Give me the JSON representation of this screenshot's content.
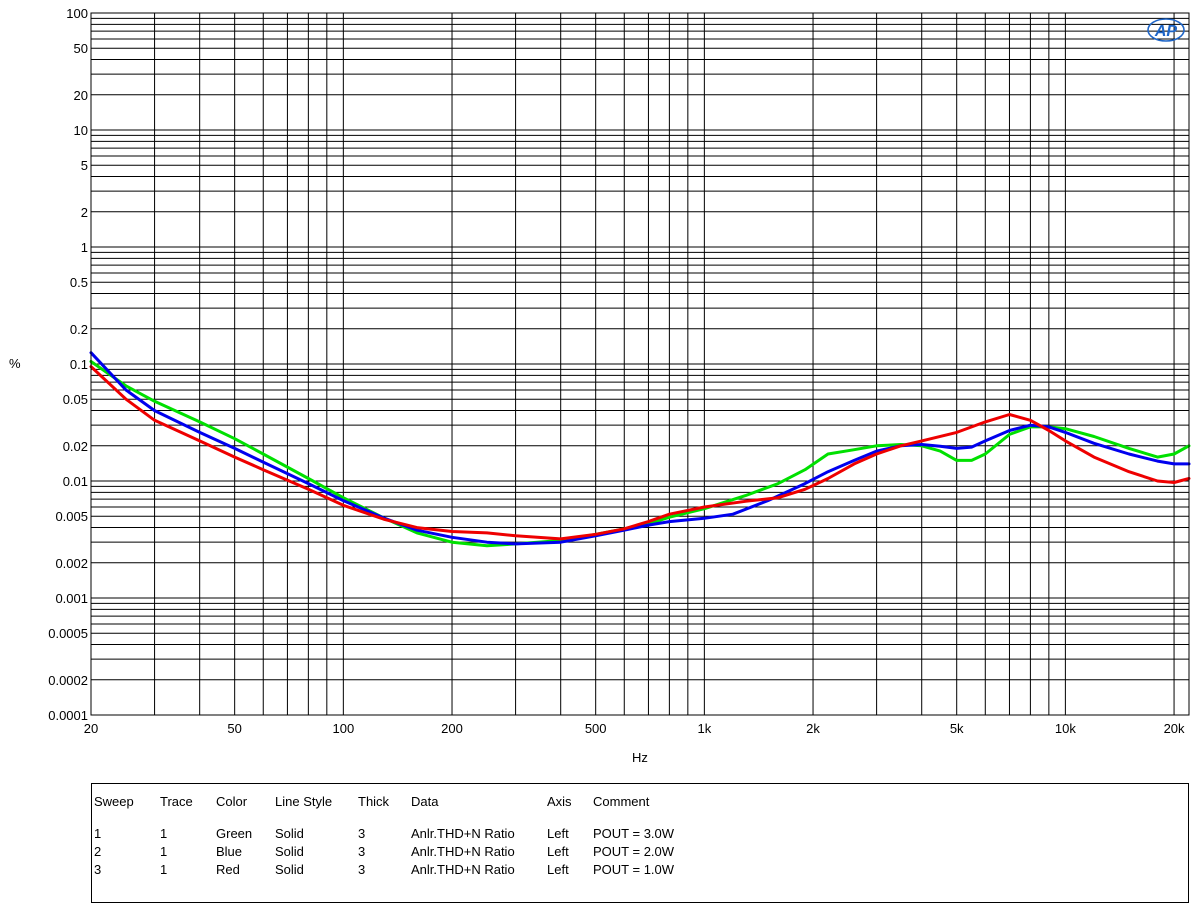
{
  "chart_data": {
    "type": "line",
    "xlabel": "Hz",
    "ylabel": "%",
    "x_scale": "log",
    "y_scale": "log",
    "xlim": [
      20,
      22000
    ],
    "ylim": [
      0.0001,
      100
    ],
    "grid": true,
    "x_ticks": [
      {
        "value": 20,
        "label": "20"
      },
      {
        "value": 50,
        "label": "50"
      },
      {
        "value": 100,
        "label": "100"
      },
      {
        "value": 200,
        "label": "200"
      },
      {
        "value": 500,
        "label": "500"
      },
      {
        "value": 1000,
        "label": "1k"
      },
      {
        "value": 2000,
        "label": "2k"
      },
      {
        "value": 5000,
        "label": "5k"
      },
      {
        "value": 10000,
        "label": "10k"
      },
      {
        "value": 20000,
        "label": "20k"
      }
    ],
    "y_ticks": [
      {
        "value": 100,
        "label": "100"
      },
      {
        "value": 50,
        "label": "50"
      },
      {
        "value": 20,
        "label": "20"
      },
      {
        "value": 10,
        "label": "10"
      },
      {
        "value": 5,
        "label": "5"
      },
      {
        "value": 2,
        "label": "2"
      },
      {
        "value": 1,
        "label": "1"
      },
      {
        "value": 0.5,
        "label": "0.5"
      },
      {
        "value": 0.2,
        "label": "0.2"
      },
      {
        "value": 0.1,
        "label": "0.1"
      },
      {
        "value": 0.05,
        "label": "0.05"
      },
      {
        "value": 0.02,
        "label": "0.02"
      },
      {
        "value": 0.01,
        "label": "0.01"
      },
      {
        "value": 0.005,
        "label": "0.005"
      },
      {
        "value": 0.002,
        "label": "0.002"
      },
      {
        "value": 0.001,
        "label": "0.001"
      },
      {
        "value": 0.0005,
        "label": "0.0005"
      },
      {
        "value": 0.0002,
        "label": "0.0002"
      },
      {
        "value": 0.0001,
        "label": "0.0001"
      }
    ],
    "series": [
      {
        "name": "POUT = 3.0W",
        "color": "#00e000",
        "points": [
          [
            20,
            0.105
          ],
          [
            25,
            0.065
          ],
          [
            30,
            0.048
          ],
          [
            40,
            0.032
          ],
          [
            50,
            0.023
          ],
          [
            60,
            0.017
          ],
          [
            80,
            0.0105
          ],
          [
            100,
            0.0072
          ],
          [
            130,
            0.0048
          ],
          [
            160,
            0.0036
          ],
          [
            200,
            0.003
          ],
          [
            250,
            0.0028
          ],
          [
            300,
            0.0029
          ],
          [
            400,
            0.0031
          ],
          [
            500,
            0.0035
          ],
          [
            600,
            0.0039
          ],
          [
            700,
            0.0043
          ],
          [
            800,
            0.0049
          ],
          [
            1000,
            0.0058
          ],
          [
            1300,
            0.0075
          ],
          [
            1600,
            0.0095
          ],
          [
            1900,
            0.0125
          ],
          [
            2200,
            0.017
          ],
          [
            2600,
            0.0185
          ],
          [
            3000,
            0.02
          ],
          [
            3500,
            0.0205
          ],
          [
            4000,
            0.02
          ],
          [
            4500,
            0.018
          ],
          [
            5000,
            0.015
          ],
          [
            5500,
            0.015
          ],
          [
            6000,
            0.017
          ],
          [
            7000,
            0.025
          ],
          [
            8000,
            0.029
          ],
          [
            9000,
            0.029
          ],
          [
            10000,
            0.028
          ],
          [
            12000,
            0.024
          ],
          [
            15000,
            0.019
          ],
          [
            18000,
            0.016
          ],
          [
            20000,
            0.017
          ],
          [
            22000,
            0.02
          ]
        ]
      },
      {
        "name": "POUT = 2.0W",
        "color": "#0000ee",
        "points": [
          [
            20,
            0.125
          ],
          [
            25,
            0.06
          ],
          [
            30,
            0.04
          ],
          [
            40,
            0.026
          ],
          [
            50,
            0.019
          ],
          [
            60,
            0.0145
          ],
          [
            80,
            0.0095
          ],
          [
            100,
            0.0068
          ],
          [
            130,
            0.0048
          ],
          [
            160,
            0.0038
          ],
          [
            200,
            0.0033
          ],
          [
            250,
            0.003
          ],
          [
            300,
            0.0029
          ],
          [
            400,
            0.003
          ],
          [
            500,
            0.0034
          ],
          [
            600,
            0.0038
          ],
          [
            700,
            0.0042
          ],
          [
            800,
            0.0045
          ],
          [
            1000,
            0.0048
          ],
          [
            1200,
            0.0052
          ],
          [
            1500,
            0.0068
          ],
          [
            1900,
            0.0095
          ],
          [
            2200,
            0.012
          ],
          [
            2600,
            0.015
          ],
          [
            3000,
            0.018
          ],
          [
            3500,
            0.02
          ],
          [
            4000,
            0.0205
          ],
          [
            4500,
            0.0198
          ],
          [
            5000,
            0.019
          ],
          [
            5500,
            0.0195
          ],
          [
            6000,
            0.022
          ],
          [
            7000,
            0.027
          ],
          [
            8000,
            0.03
          ],
          [
            9000,
            0.029
          ],
          [
            10000,
            0.026
          ],
          [
            12000,
            0.021
          ],
          [
            15000,
            0.017
          ],
          [
            18000,
            0.0148
          ],
          [
            20000,
            0.014
          ],
          [
            22000,
            0.014
          ]
        ]
      },
      {
        "name": "POUT = 1.0W",
        "color": "#ee0000",
        "points": [
          [
            20,
            0.095
          ],
          [
            25,
            0.05
          ],
          [
            30,
            0.033
          ],
          [
            40,
            0.022
          ],
          [
            50,
            0.016
          ],
          [
            60,
            0.0125
          ],
          [
            80,
            0.0085
          ],
          [
            100,
            0.0062
          ],
          [
            130,
            0.0047
          ],
          [
            160,
            0.004
          ],
          [
            200,
            0.0037
          ],
          [
            250,
            0.0036
          ],
          [
            300,
            0.0034
          ],
          [
            400,
            0.0032
          ],
          [
            500,
            0.0035
          ],
          [
            600,
            0.0039
          ],
          [
            700,
            0.0045
          ],
          [
            800,
            0.0052
          ],
          [
            1000,
            0.006
          ],
          [
            1300,
            0.0067
          ],
          [
            1600,
            0.0072
          ],
          [
            1900,
            0.0085
          ],
          [
            2200,
            0.0105
          ],
          [
            2600,
            0.014
          ],
          [
            3000,
            0.017
          ],
          [
            3500,
            0.02
          ],
          [
            4000,
            0.022
          ],
          [
            5000,
            0.026
          ],
          [
            6000,
            0.032
          ],
          [
            7000,
            0.037
          ],
          [
            8000,
            0.033
          ],
          [
            9000,
            0.027
          ],
          [
            10000,
            0.022
          ],
          [
            12000,
            0.016
          ],
          [
            15000,
            0.012
          ],
          [
            18000,
            0.01
          ],
          [
            20000,
            0.0097
          ],
          [
            22000,
            0.0105
          ]
        ]
      }
    ]
  },
  "legend": {
    "headers": [
      "Sweep",
      "Trace",
      "Color",
      "Line Style",
      "Thick",
      "Data",
      "Axis",
      "Comment"
    ],
    "rows": [
      [
        "1",
        "1",
        "Green",
        "Solid",
        "3",
        "Anlr.THD+N Ratio",
        "Left",
        "POUT = 3.0W"
      ],
      [
        "2",
        "1",
        "Blue",
        "Solid",
        "3",
        "Anlr.THD+N Ratio",
        "Left",
        "POUT = 2.0W"
      ],
      [
        "3",
        "1",
        "Red",
        "Solid",
        "3",
        "Anlr.THD+N Ratio",
        "Left",
        "POUT = 1.0W"
      ]
    ]
  },
  "logo": "AP"
}
